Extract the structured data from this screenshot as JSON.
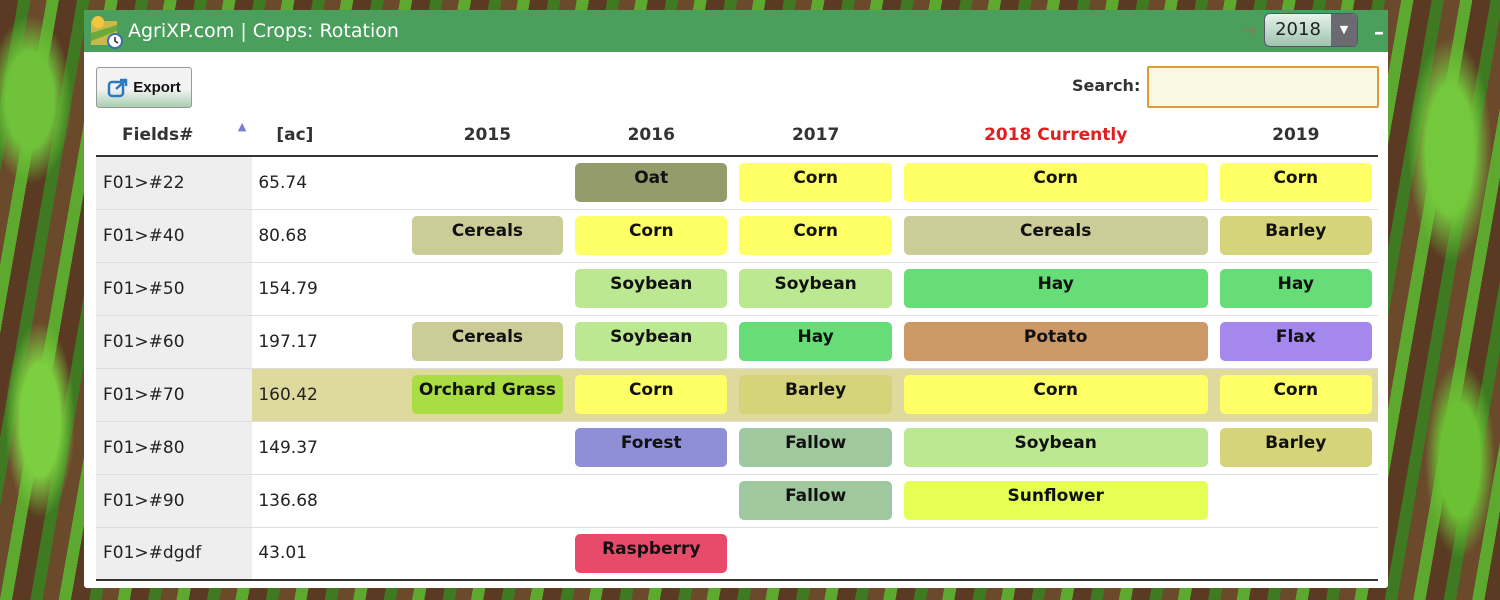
{
  "header": {
    "title": "AgriXP.com | Crops: Rotation",
    "year": "2018",
    "minimize": "–"
  },
  "toolbar": {
    "export_label": "Export",
    "search_label": "Search:",
    "search_value": ""
  },
  "table": {
    "columns": [
      "Fields#",
      "[ac]",
      "2015",
      "2016",
      "2017",
      "2018 Currently",
      "2019"
    ],
    "current_color": "#e02020",
    "rows": [
      {
        "field": "F01>#22",
        "ac": "65.74",
        "crops": [
          "",
          "Oat",
          "Corn",
          "Corn",
          "Corn"
        ]
      },
      {
        "field": "F01>#40",
        "ac": "80.68",
        "crops": [
          "Cereals",
          "Corn",
          "Corn",
          "Cereals",
          "Barley"
        ]
      },
      {
        "field": "F01>#50",
        "ac": "154.79",
        "crops": [
          "",
          "Soybean",
          "Soybean",
          "Hay",
          "Hay"
        ]
      },
      {
        "field": "F01>#60",
        "ac": "197.17",
        "crops": [
          "Cereals",
          "Soybean",
          "Hay",
          "Potato",
          "Flax"
        ]
      },
      {
        "field": "F01>#70",
        "ac": "160.42",
        "crops": [
          "Orchard Grass",
          "Corn",
          "Barley",
          "Corn",
          "Corn"
        ],
        "highlighted": true
      },
      {
        "field": "F01>#80",
        "ac": "149.37",
        "crops": [
          "",
          "Forest",
          "Fallow",
          "Soybean",
          "Barley"
        ]
      },
      {
        "field": "F01>#90",
        "ac": "136.68",
        "crops": [
          "",
          "",
          "Fallow",
          "Sunflower",
          ""
        ]
      },
      {
        "field": "F01>#dgdf",
        "ac": "43.01",
        "crops": [
          "",
          "Raspberry",
          "",
          "",
          ""
        ]
      }
    ]
  },
  "crop_colors": {
    "Oat": "#949c6c",
    "Corn": "#ffff66",
    "Cereals": "#cccc99",
    "Barley": "#d6d47a",
    "Soybean": "#bbe890",
    "Hay": "#66dd77",
    "Potato": "#cc9966",
    "Flax": "#a488ee",
    "Orchard Grass": "#aadd44",
    "Forest": "#8f8fd6",
    "Fallow": "#a0c89e",
    "Sunflower": "#e6ff55",
    "Raspberry": "#e84a6a"
  }
}
